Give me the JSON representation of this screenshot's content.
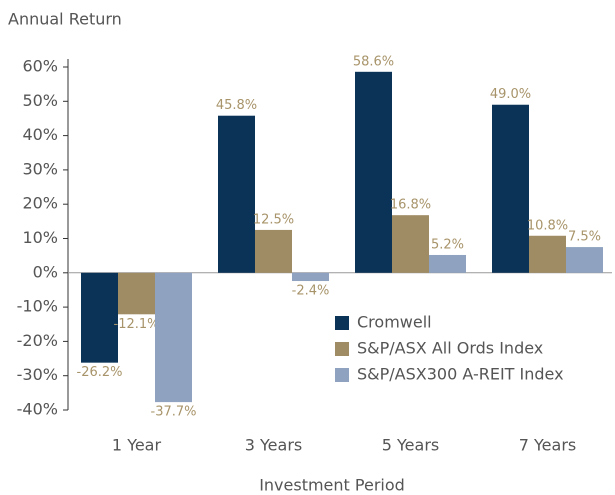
{
  "chart_data": {
    "type": "bar",
    "y_label": "Annual Return",
    "x_label": "Investment Period",
    "categories": [
      "1 Year",
      "3 Years",
      "5 Years",
      "7 Years"
    ],
    "series": [
      {
        "name": "Cromwell",
        "color": "#0b3358",
        "values": [
          -26.2,
          45.8,
          58.6,
          49.0
        ],
        "value_labels": [
          "-26.2%",
          "45.8%",
          "58.6%",
          "49.0%"
        ]
      },
      {
        "name": "S&P/ASX All Ords Index",
        "color": "#a08c64",
        "values": [
          -12.1,
          12.5,
          16.8,
          10.8
        ],
        "value_labels": [
          "-12.1%",
          "12.5%",
          "16.8%",
          "10.8%"
        ]
      },
      {
        "name": "S&P/ASX300 A-REIT Index",
        "color": "#8fa3c0",
        "values": [
          -37.7,
          -2.4,
          5.2,
          7.5
        ],
        "value_labels": [
          "-37.7%",
          "-2.4%",
          "5.2%",
          "7.5%"
        ]
      }
    ],
    "ylim": [
      -40,
      60
    ],
    "yticks": [
      {
        "value": -40,
        "label": "-40%"
      },
      {
        "value": -30,
        "label": "-30%"
      },
      {
        "value": -20,
        "label": "-20%"
      },
      {
        "value": -10,
        "label": "-10%"
      },
      {
        "value": 0,
        "label": "0%"
      },
      {
        "value": 10,
        "label": "10%"
      },
      {
        "value": 20,
        "label": "20%"
      },
      {
        "value": 30,
        "label": "30%"
      },
      {
        "value": 40,
        "label": "40%"
      },
      {
        "value": 50,
        "label": "50%"
      },
      {
        "value": 60,
        "label": "60%"
      }
    ],
    "legend": "lower right",
    "label_color": "#a8946a"
  }
}
